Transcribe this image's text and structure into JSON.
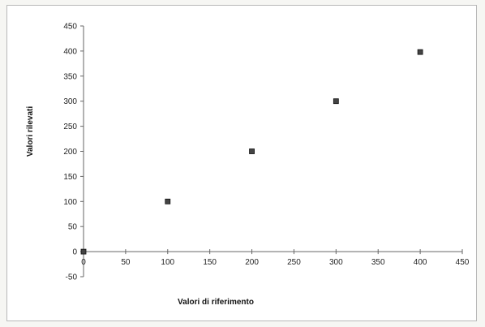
{
  "chart_data": {
    "type": "scatter",
    "title": "",
    "xlabel": "Valori di riferimento",
    "ylabel": "Valori rilevati",
    "xlim": [
      0,
      450
    ],
    "ylim": [
      -50,
      450
    ],
    "x_ticks": [
      0,
      50,
      100,
      150,
      200,
      250,
      300,
      350,
      400,
      450
    ],
    "y_ticks": [
      -50,
      0,
      50,
      100,
      150,
      200,
      250,
      300,
      350,
      400,
      450
    ],
    "grid": false,
    "legend": "none",
    "marker": "square",
    "series": [
      {
        "points": [
          {
            "x": 0,
            "y": 0
          },
          {
            "x": 100,
            "y": 100
          },
          {
            "x": 200,
            "y": 200
          },
          {
            "x": 300,
            "y": 300
          },
          {
            "x": 400,
            "y": 398
          }
        ]
      }
    ],
    "colors": {
      "marker_fill": "#444444",
      "marker_stroke": "#111111",
      "axis": "#666666"
    }
  }
}
